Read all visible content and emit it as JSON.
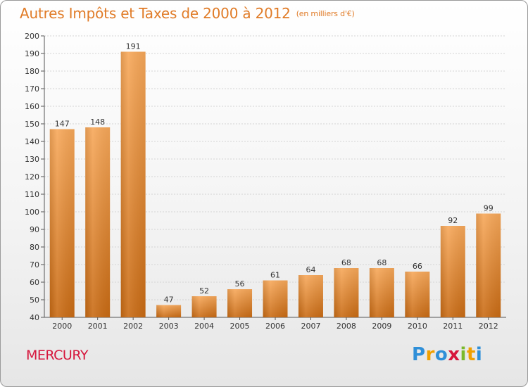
{
  "header": {
    "title": "Autres Impôts et Taxes de 2000 à 2012",
    "unit": "(en milliers d'€)"
  },
  "footer": {
    "place": "MERCURY",
    "brand_letters": [
      "P",
      "r",
      "o",
      "x",
      "i",
      "t",
      "i"
    ]
  },
  "colors": {
    "title": "#e07b27",
    "bar_light": "#f7a85a",
    "bar_dark": "#c96b14",
    "place": "#d6163c"
  },
  "chart_data": {
    "type": "bar",
    "title": "Autres Impôts et Taxes de 2000 à 2012",
    "categories": [
      "2000",
      "2001",
      "2002",
      "2003",
      "2004",
      "2005",
      "2006",
      "2007",
      "2008",
      "2009",
      "2010",
      "2011",
      "2012"
    ],
    "values": [
      147,
      148,
      191,
      47,
      52,
      56,
      61,
      64,
      68,
      68,
      66,
      92,
      99
    ],
    "ylim": [
      40,
      200
    ],
    "yticks": [
      40,
      50,
      60,
      70,
      80,
      90,
      100,
      110,
      120,
      130,
      140,
      150,
      160,
      170,
      180,
      190,
      200
    ],
    "grid": true,
    "xlabel": "",
    "ylabel": ""
  }
}
